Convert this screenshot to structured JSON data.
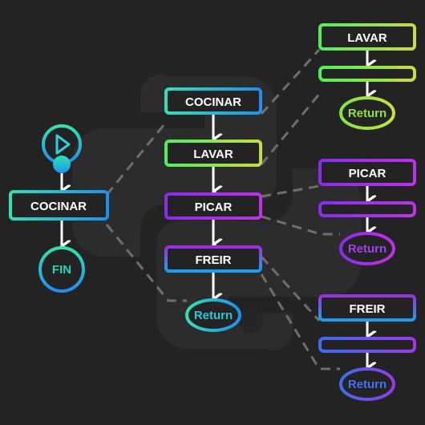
{
  "colors": {
    "background": "#232323",
    "watermark": "#2c2c2c",
    "connector": "#6e6e6e",
    "arrow": "#ffffff",
    "text": "#ffffff"
  },
  "main_flow": {
    "start_icon": "play-icon",
    "process_label": "COCINAR",
    "end_label": "FIN"
  },
  "cocinar_flow": {
    "steps": [
      "COCINAR",
      "LAVAR",
      "PICAR",
      "FREIR"
    ],
    "return_label": "Return"
  },
  "lavar_flow": {
    "title": "LAVAR",
    "return_label": "Return"
  },
  "picar_flow": {
    "title": "PICAR",
    "return_label": "Return"
  },
  "freir_flow": {
    "title": "FREIR",
    "return_label": "Return"
  }
}
